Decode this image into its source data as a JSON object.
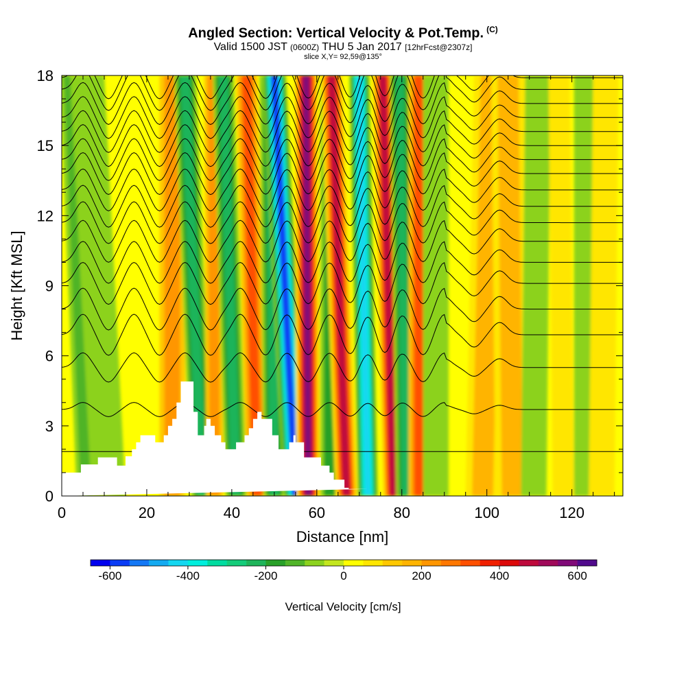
{
  "title": {
    "main": "Angled Section: Vertical Velocity & Pot.Temp.",
    "tag": "(C)",
    "valid_prefix": "Valid 1500 JST",
    "valid_utc": "(0600Z)",
    "valid_date": "THU 5 Jan 2017",
    "forecast": "[12hrFcst@2307z]",
    "slice": "slice X,Y= 92,59@135°"
  },
  "chart_data": {
    "type": "heatmap",
    "xlabel": "Distance [nm]",
    "ylabel": "Height [Kft MSL]",
    "xlim": [
      0,
      132
    ],
    "ylim": [
      0,
      18
    ],
    "x_ticks": [
      "0",
      "20",
      "40",
      "60",
      "80",
      "100",
      "120"
    ],
    "y_ticks": [
      "0",
      "3",
      "6",
      "9",
      "12",
      "15",
      "18"
    ],
    "terrain_profile": {
      "x": [
        0,
        4.5,
        4.5,
        8.5,
        8.5,
        13,
        13,
        15,
        15,
        16.5,
        16.5,
        17.5,
        17.5,
        18.5,
        18.5,
        22,
        22,
        24,
        24,
        25,
        25,
        26,
        26,
        27,
        27,
        28,
        28,
        31,
        31,
        32,
        32,
        33.5,
        33.5,
        34,
        34,
        35,
        35,
        36,
        36,
        37.5,
        37.5,
        38.5,
        38.5,
        41,
        41,
        43,
        43,
        44,
        44,
        45,
        45,
        46,
        46,
        47,
        47,
        49.5,
        49.5,
        51,
        51,
        53.5,
        53.5,
        54.5,
        54.5,
        55,
        55,
        57,
        57,
        61,
        61,
        63,
        63,
        64,
        64,
        66.5,
        66.5,
        67.5,
        67.5,
        72,
        132
      ],
      "y": [
        1,
        1,
        1.35,
        1.35,
        1.65,
        1.65,
        1.3,
        1.3,
        1.7,
        1.7,
        2.0,
        2.0,
        2.3,
        2.3,
        2.6,
        2.6,
        2.3,
        2.3,
        2.6,
        2.6,
        3.0,
        3.0,
        3.3,
        3.3,
        4.0,
        4.0,
        4.9,
        4.9,
        3.6,
        3.6,
        2.6,
        2.6,
        3.0,
        3.0,
        3.3,
        3.3,
        3.0,
        3.0,
        2.6,
        2.6,
        2.3,
        2.3,
        2.0,
        2.0,
        2.3,
        2.3,
        2.6,
        2.6,
        2.9,
        2.9,
        3.3,
        3.3,
        3.6,
        3.6,
        3.3,
        3.3,
        2.6,
        2.6,
        2.0,
        2.0,
        2.3,
        2.3,
        2.6,
        2.6,
        2.3,
        2.3,
        1.65,
        1.65,
        1.3,
        1.3,
        1.0,
        1.0,
        0.7,
        0.7,
        0.35,
        0.35,
        0.3,
        0.3
      ]
    },
    "vertical_velocity_bands": [
      {
        "x_bottom": 6,
        "x_top": 2,
        "halfwidth": 2.5,
        "value": -150
      },
      {
        "x_bottom": 11,
        "x_top": 6,
        "halfwidth": 4,
        "value": -80
      },
      {
        "x_bottom": 26,
        "x_top": 26,
        "halfwidth": 3,
        "value": 200
      },
      {
        "x_bottom": 33,
        "x_top": 29,
        "halfwidth": 2.6,
        "value": -250
      },
      {
        "x_bottom": 36,
        "x_top": 35.5,
        "halfwidth": 2,
        "value": 200
      },
      {
        "x_bottom": 41,
        "x_top": 38,
        "halfwidth": 2.5,
        "value": -250
      },
      {
        "x_bottom": 46,
        "x_top": 43.5,
        "halfwidth": 2.5,
        "value": 300
      },
      {
        "x_bottom": 50,
        "x_top": 49,
        "halfwidth": 2.5,
        "value": -250
      },
      {
        "x_bottom": 55,
        "x_top": 50,
        "halfwidth": 2.8,
        "value": -600
      },
      {
        "x_bottom": 58,
        "x_top": 57.5,
        "halfwidth": 2.8,
        "value": 550
      },
      {
        "x_bottom": 63,
        "x_top": 63,
        "halfwidth": 2.2,
        "value": -180
      },
      {
        "x_bottom": 67,
        "x_top": 63.5,
        "halfwidth": 2.6,
        "value": 450
      },
      {
        "x_bottom": 72,
        "x_top": 70,
        "halfwidth": 2.4,
        "value": -450
      },
      {
        "x_bottom": 78,
        "x_top": 75.5,
        "halfwidth": 2.5,
        "value": 450
      },
      {
        "x_bottom": 81,
        "x_top": 79.5,
        "halfwidth": 2.3,
        "value": -250
      },
      {
        "x_bottom": 84,
        "x_top": 84,
        "halfwidth": 2.4,
        "value": 300
      },
      {
        "x_bottom": 88,
        "x_top": 88,
        "halfwidth": 3,
        "value": -100
      },
      {
        "x_bottom": 99,
        "x_top": 101,
        "halfwidth": 4,
        "value": 150
      },
      {
        "x_bottom": 106,
        "x_top": 105,
        "halfwidth": 4,
        "value": 170
      },
      {
        "x_bottom": 111,
        "x_top": 112,
        "halfwidth": 3,
        "value": -80
      },
      {
        "x_bottom": 118,
        "x_top": 117,
        "halfwidth": 2.5,
        "value": 90
      },
      {
        "x_bottom": 123,
        "x_top": 123,
        "halfwidth": 2.5,
        "value": -80
      },
      {
        "x_bottom": 127,
        "x_top": 128,
        "halfwidth": 3,
        "value": 80
      }
    ],
    "potential_temperature_contours": {
      "base_levels_kft": [
        1.9,
        3.7,
        5.5,
        6.9,
        8.0,
        9.1,
        10.0,
        10.9,
        11.7,
        12.4,
        13.1,
        13.8,
        14.4,
        15.0,
        15.6,
        16.2,
        16.8,
        17.4,
        17.9
      ],
      "wave_crests_x": [
        5,
        17,
        29,
        42,
        53,
        63,
        72,
        80,
        90,
        103
      ],
      "wave_troughs_x": [
        11,
        23,
        35,
        48,
        58,
        68,
        76,
        85,
        97
      ]
    },
    "colorbar": {
      "label": "Vertical Velocity [cm/s]",
      "min": -650,
      "max": 650,
      "step": 50,
      "ticks": [
        "-600",
        "-400",
        "-200",
        "0",
        "200",
        "400",
        "600"
      ],
      "colors": [
        "#0000ee",
        "#0a3cf5",
        "#1478f5",
        "#14aaf0",
        "#14d7f0",
        "#00eedd",
        "#00dca0",
        "#14cc7a",
        "#1eb45a",
        "#28a028",
        "#50b428",
        "#8cd21e",
        "#c3e61e",
        "#ffff00",
        "#ffe600",
        "#ffc800",
        "#ffb400",
        "#ff9600",
        "#ff7800",
        "#ff5000",
        "#f02000",
        "#dc0a0a",
        "#be0a3c",
        "#a00a5a",
        "#800a78",
        "#500a8c"
      ]
    }
  }
}
